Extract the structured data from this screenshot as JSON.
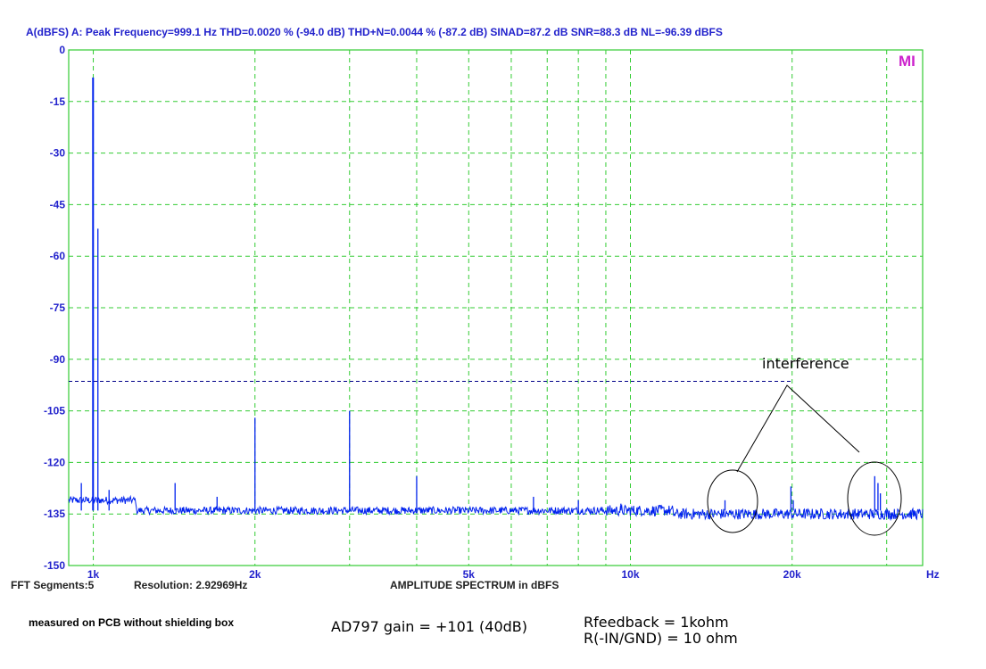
{
  "header": "A(dBFS) A: Peak Frequency=999.1 Hz  THD=0.0020 % (-94.0 dB)  THD+N=0.0044 % (-87.2 dB)  SINAD=87.2 dB  SNR=88.3 dB  NL=-96.39 dBFS",
  "logo_text": "MI",
  "footer": {
    "fft_segments": "FFT Segments:5",
    "resolution": "Resolution: 2.92969Hz",
    "title": "AMPLITUDE SPECTRUM in dBFS",
    "x_unit": "Hz"
  },
  "annotations": {
    "interference": "interference",
    "note": "measured on PCB without shielding box",
    "gain": "AD797 gain = +101  (40dB)",
    "rfeedback": "Rfeedback = 1kohm",
    "rin": "R(-IN/GND) = 10 ohm"
  },
  "colors": {
    "trace": "#0022ee",
    "grid": "#33cc33",
    "axis_text": "#2222cc",
    "noise_line": "#000088"
  },
  "chart_data": {
    "type": "line",
    "x_scale": "log",
    "xlim": [
      900,
      35000
    ],
    "ylim": [
      -150,
      0
    ],
    "y_ticks": [
      0,
      -15,
      -30,
      -45,
      -60,
      -75,
      -90,
      -105,
      -120,
      -135,
      -150
    ],
    "x_tick_labels": [
      {
        "x": 1000,
        "label": "1k"
      },
      {
        "x": 2000,
        "label": "2k"
      },
      {
        "x": 5000,
        "label": "5k"
      },
      {
        "x": 10000,
        "label": "10k"
      },
      {
        "x": 20000,
        "label": "20k"
      }
    ],
    "x_gridlines": [
      1000,
      2000,
      3000,
      4000,
      5000,
      6000,
      7000,
      8000,
      9000,
      10000,
      20000,
      30000
    ],
    "grid": true,
    "noise_floor_db": -134,
    "noise_level_line": {
      "value": -96.4,
      "x_from": 900,
      "x_to": 20000
    },
    "peaks": [
      {
        "f": 950,
        "db": -126
      },
      {
        "f": 999,
        "db": -8
      },
      {
        "f": 1020,
        "db": -52
      },
      {
        "f": 1070,
        "db": -128
      },
      {
        "f": 1420,
        "db": -126
      },
      {
        "f": 1700,
        "db": -130
      },
      {
        "f": 2000,
        "db": -107
      },
      {
        "f": 3000,
        "db": -105
      },
      {
        "f": 4000,
        "db": -124
      },
      {
        "f": 6600,
        "db": -130
      },
      {
        "f": 8000,
        "db": -131
      },
      {
        "f": 9600,
        "db": -132
      },
      {
        "f": 15000,
        "db": -131
      },
      {
        "f": 19900,
        "db": -127
      },
      {
        "f": 20100,
        "db": -131
      },
      {
        "f": 28500,
        "db": -124
      },
      {
        "f": 28900,
        "db": -126
      },
      {
        "f": 29200,
        "db": -129
      }
    ]
  }
}
